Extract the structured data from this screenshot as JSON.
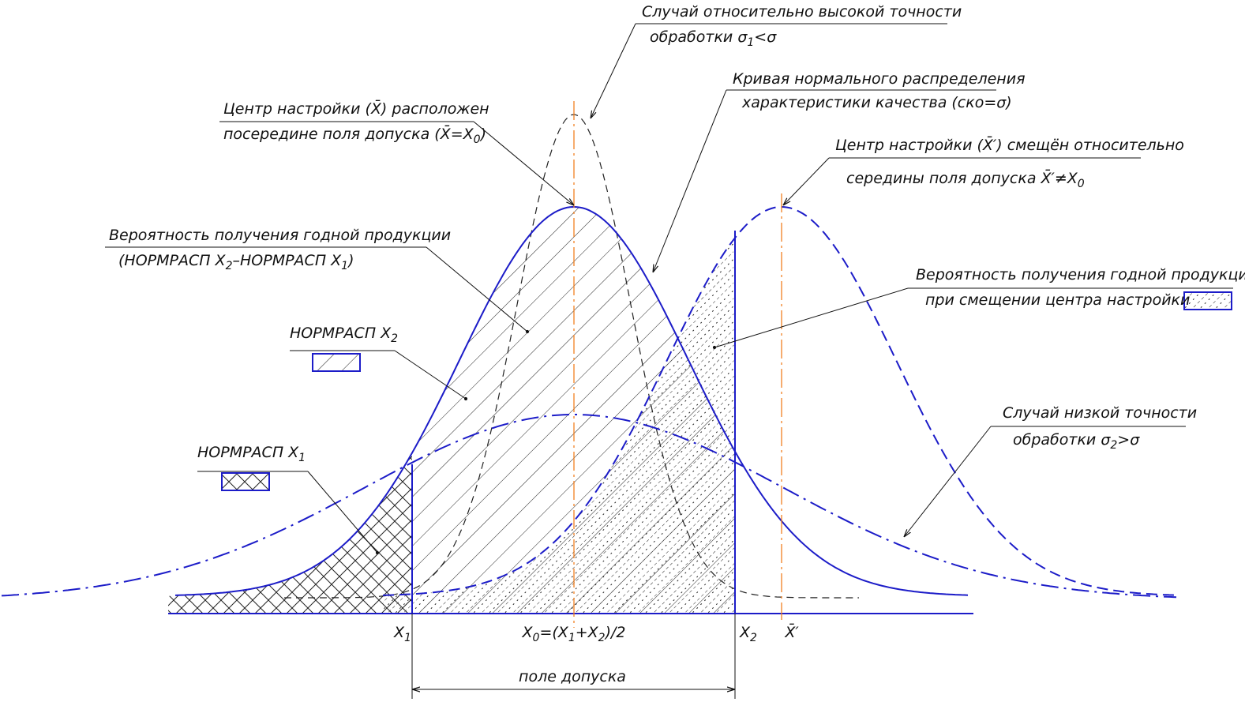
{
  "annotations": [
    {
      "lines": [
        [
          "Случай относительно высокой точности"
        ],
        [
          "обработки σ",
          "1",
          "<σ"
        ]
      ]
    },
    {
      "lines": [
        [
          "Центр настройки (X̄) расположен"
        ],
        [
          "посередине поля допуска (X̄=X",
          "0",
          ")"
        ]
      ]
    },
    {
      "lines": [
        [
          "Кривая нормального распределения"
        ],
        [
          "характеристики качества (ско=σ)"
        ]
      ]
    },
    {
      "lines": [
        [
          "Центр настройки (X̄′) смещён относительно"
        ],
        [
          "середины поля допуска X̄′≠X",
          "0"
        ]
      ]
    },
    {
      "lines": [
        [
          "Вероятность получения годной продукции"
        ],
        [
          "(НОРМРАСП X",
          "2",
          "–НОРМРАСП X",
          "1",
          ")"
        ]
      ]
    },
    {
      "lines": [
        [
          "НОРМРАСП X",
          "2"
        ]
      ]
    },
    {
      "lines": [
        [
          "НОРМРАСП X",
          "1"
        ]
      ]
    },
    {
      "lines": [
        [
          "Вероятность получения годной продукции"
        ],
        [
          "при смещении центра настройки"
        ]
      ]
    },
    {
      "lines": [
        [
          "Случай низкой точности"
        ],
        [
          "обработки σ",
          "2",
          ">σ"
        ]
      ]
    }
  ],
  "axis_labels": [
    [
      "X",
      "1"
    ],
    [
      "X",
      "0",
      "=(X",
      "1",
      "+X",
      "2",
      ")/2"
    ],
    [
      "X",
      "2"
    ],
    [
      "X̄′"
    ]
  ],
  "dimension_label": "поле допуска"
}
